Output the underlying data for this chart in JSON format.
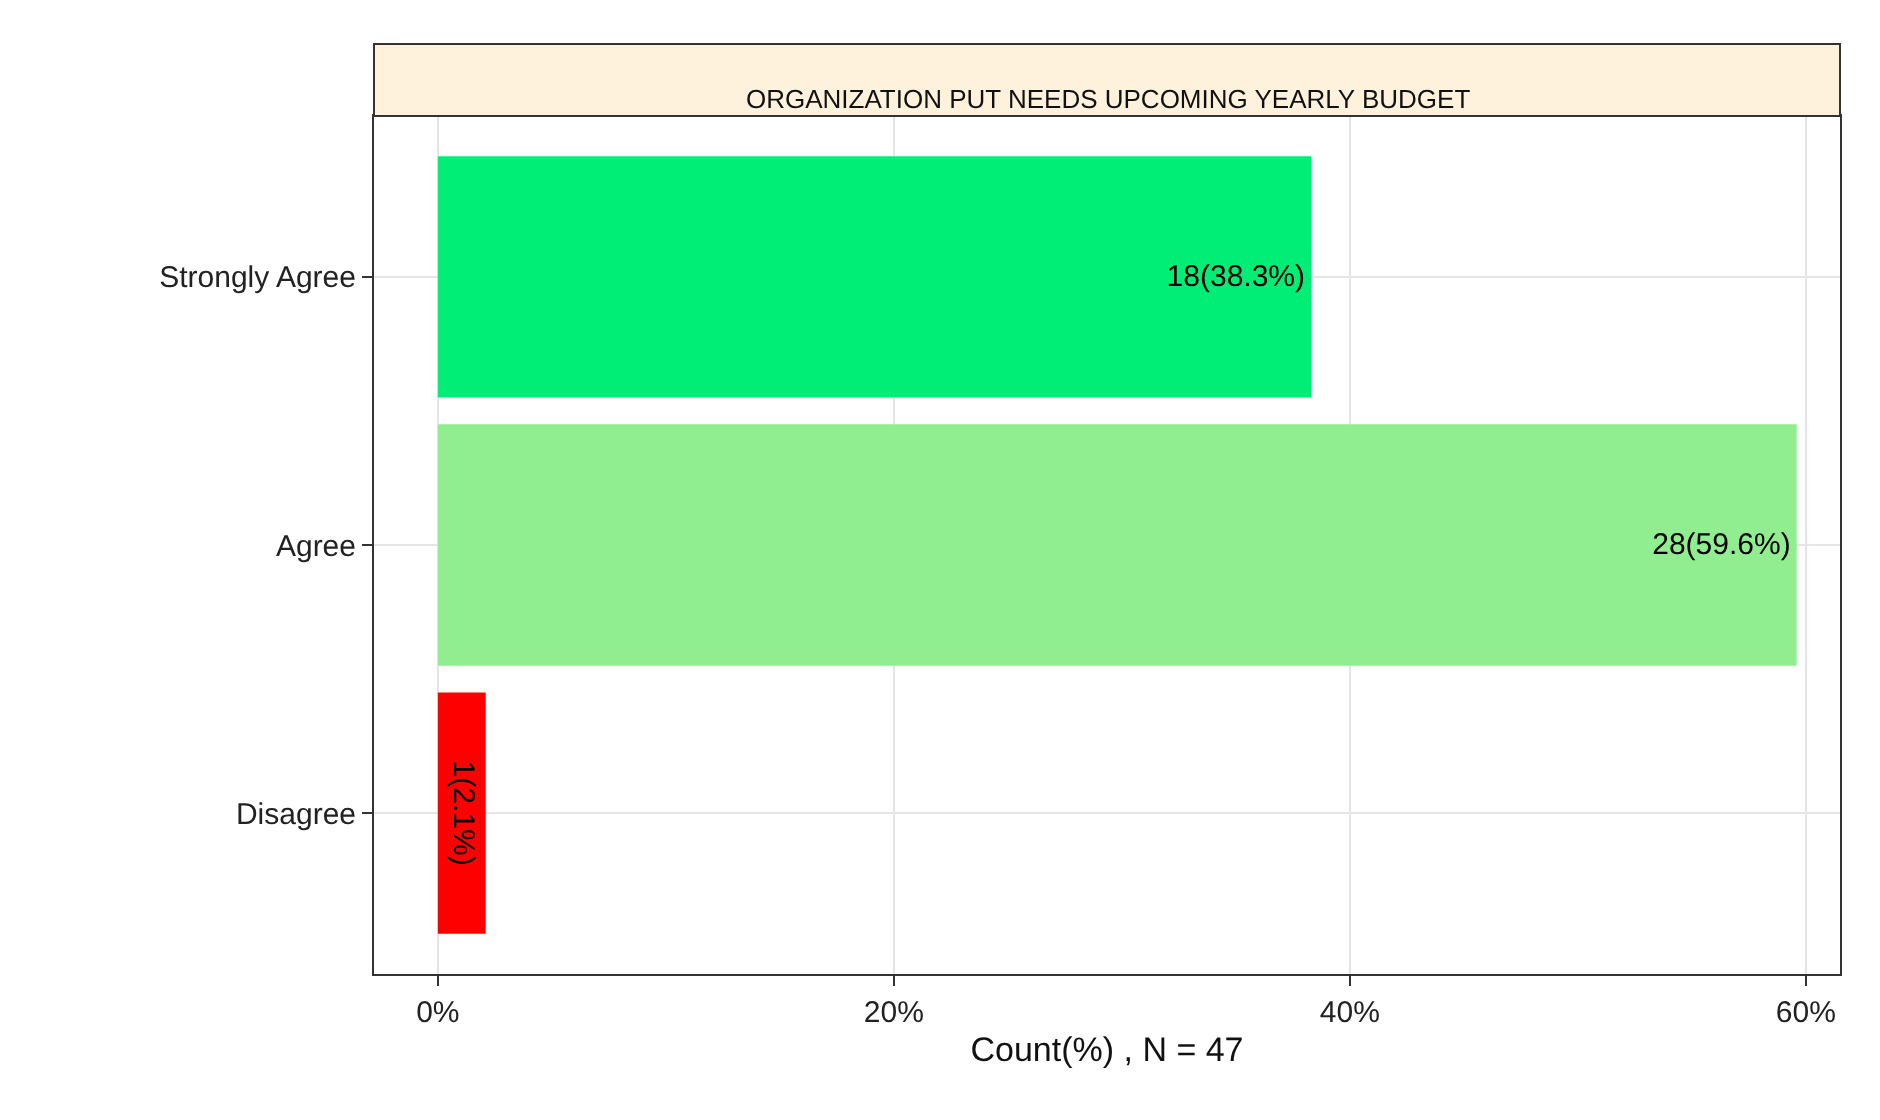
{
  "chart_data": {
    "type": "bar",
    "orientation": "horizontal",
    "title": "ORGANIZATION PUT NEEDS UPCOMING YEARLY BUDGET",
    "xlabel": "Count(%) , N = 47",
    "categories": [
      "Strongly Agree",
      "Agree",
      "Disagree"
    ],
    "values": [
      38.3,
      59.6,
      2.1
    ],
    "colors": [
      "#00ee76",
      "#90ee90",
      "#ff0000"
    ],
    "value_labels": [
      "18(38.3%)",
      "28(59.6%)",
      "1(2.1%)"
    ],
    "xlim": [
      -2.8,
      61.5
    ],
    "xticks": [
      {
        "value": 0,
        "label": "0%"
      },
      {
        "value": 20,
        "label": "20%"
      },
      {
        "value": 40,
        "label": "40%"
      },
      {
        "value": 60,
        "label": "60%"
      }
    ],
    "grid": true,
    "legend": false
  }
}
